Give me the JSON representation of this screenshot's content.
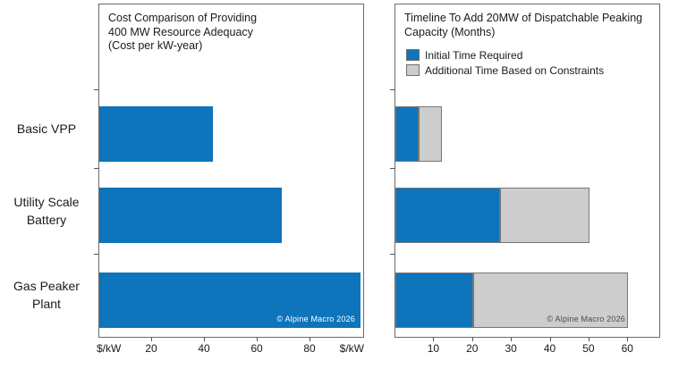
{
  "watermark_text": "© Alpine Macro 2026",
  "accent_blue": "#0E74BC",
  "accent_gray": "#CDCDCD",
  "chart_data": [
    {
      "type": "bar",
      "orientation": "horizontal",
      "title": "Cost Comparison of Providing\n400 MW Resource Adequacy\n(Cost per kW-year)",
      "categories": [
        "Basic VPP",
        "Utility Scale\nBattery",
        "Gas Peaker\nPlant"
      ],
      "values": [
        43,
        69,
        99
      ],
      "xlim": [
        0,
        100
      ],
      "x_ticks": [
        20,
        40,
        60,
        80
      ],
      "x_axis_unit_label_left": "$/kW",
      "x_axis_unit_label_right": "$/kW",
      "bar_color": "#0E74BC",
      "grid": false,
      "watermark": "© Alpine Macro 2026",
      "watermark_color": "#ffffff"
    },
    {
      "type": "bar",
      "orientation": "horizontal",
      "stacked": true,
      "title": "Timeline To Add 20MW of Dispatchable Peaking\nCapacity (Months)",
      "categories": [
        "Basic VPP",
        "Utility Scale\nBattery",
        "Gas Peaker\nPlant"
      ],
      "series": [
        {
          "name": "Initial Time Required",
          "values": [
            6,
            27,
            20
          ],
          "color": "#0E74BC"
        },
        {
          "name": "Additional Time Based on Constraints",
          "values": [
            6,
            23,
            40
          ],
          "color": "#CDCDCD"
        }
      ],
      "totals": [
        12,
        50,
        60
      ],
      "xlim": [
        0,
        68
      ],
      "x_ticks": [
        10,
        20,
        30,
        40,
        50,
        60
      ],
      "legend_position": "top-left-inside",
      "grid": false,
      "watermark": "© Alpine Macro 2026",
      "watermark_color": "#4d4d4d"
    }
  ]
}
